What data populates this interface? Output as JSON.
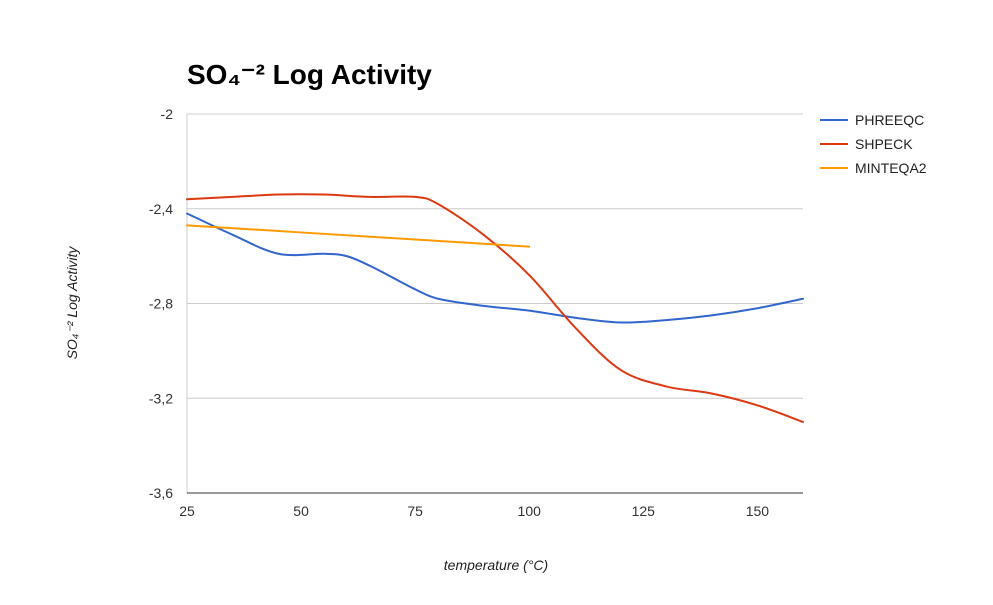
{
  "chart_data": {
    "type": "line",
    "title": "SO₄⁻² Log Activity",
    "xlabel": "temperature (°C)",
    "ylabel": "SO₄⁻² Log Activity",
    "xlim": [
      25,
      160
    ],
    "ylim": [
      -3.6,
      -2
    ],
    "x_ticks": [
      25,
      50,
      75,
      100,
      125,
      150
    ],
    "x_tick_labels": [
      "25",
      "50",
      "75",
      "100",
      "125",
      "150"
    ],
    "y_ticks": [
      -2,
      -2.4,
      -2.8,
      -3.2,
      -3.6
    ],
    "y_tick_labels": [
      "-2",
      "-2,4",
      "-2,8",
      "-3,2",
      "-3,6"
    ],
    "grid": "horizontal",
    "legend_position": "right",
    "series": [
      {
        "name": "PHREEQC",
        "color": "#3366cc",
        "x": [
          25,
          35,
          45,
          55,
          60,
          65,
          70,
          75,
          80,
          90,
          100,
          110,
          120,
          130,
          140,
          150,
          160
        ],
        "y": [
          -2.42,
          -2.51,
          -2.59,
          -2.59,
          -2.6,
          -2.64,
          -2.69,
          -2.74,
          -2.78,
          -2.81,
          -2.83,
          -2.86,
          -2.88,
          -2.87,
          -2.85,
          -2.82,
          -2.78
        ]
      },
      {
        "name": "SHPECK",
        "color": "#dc3912",
        "x": [
          25,
          35,
          45,
          55,
          65,
          75,
          80,
          90,
          100,
          110,
          120,
          130,
          140,
          150,
          160
        ],
        "y": [
          -2.36,
          -2.35,
          -2.34,
          -2.34,
          -2.35,
          -2.35,
          -2.38,
          -2.51,
          -2.68,
          -2.9,
          -3.08,
          -3.15,
          -3.18,
          -3.23,
          -3.3
        ]
      },
      {
        "name": "MINTEQA2",
        "color": "#ff9900",
        "x": [
          25,
          50,
          75,
          100
        ],
        "y": [
          -2.47,
          -2.5,
          -2.53,
          -2.56
        ]
      }
    ]
  }
}
